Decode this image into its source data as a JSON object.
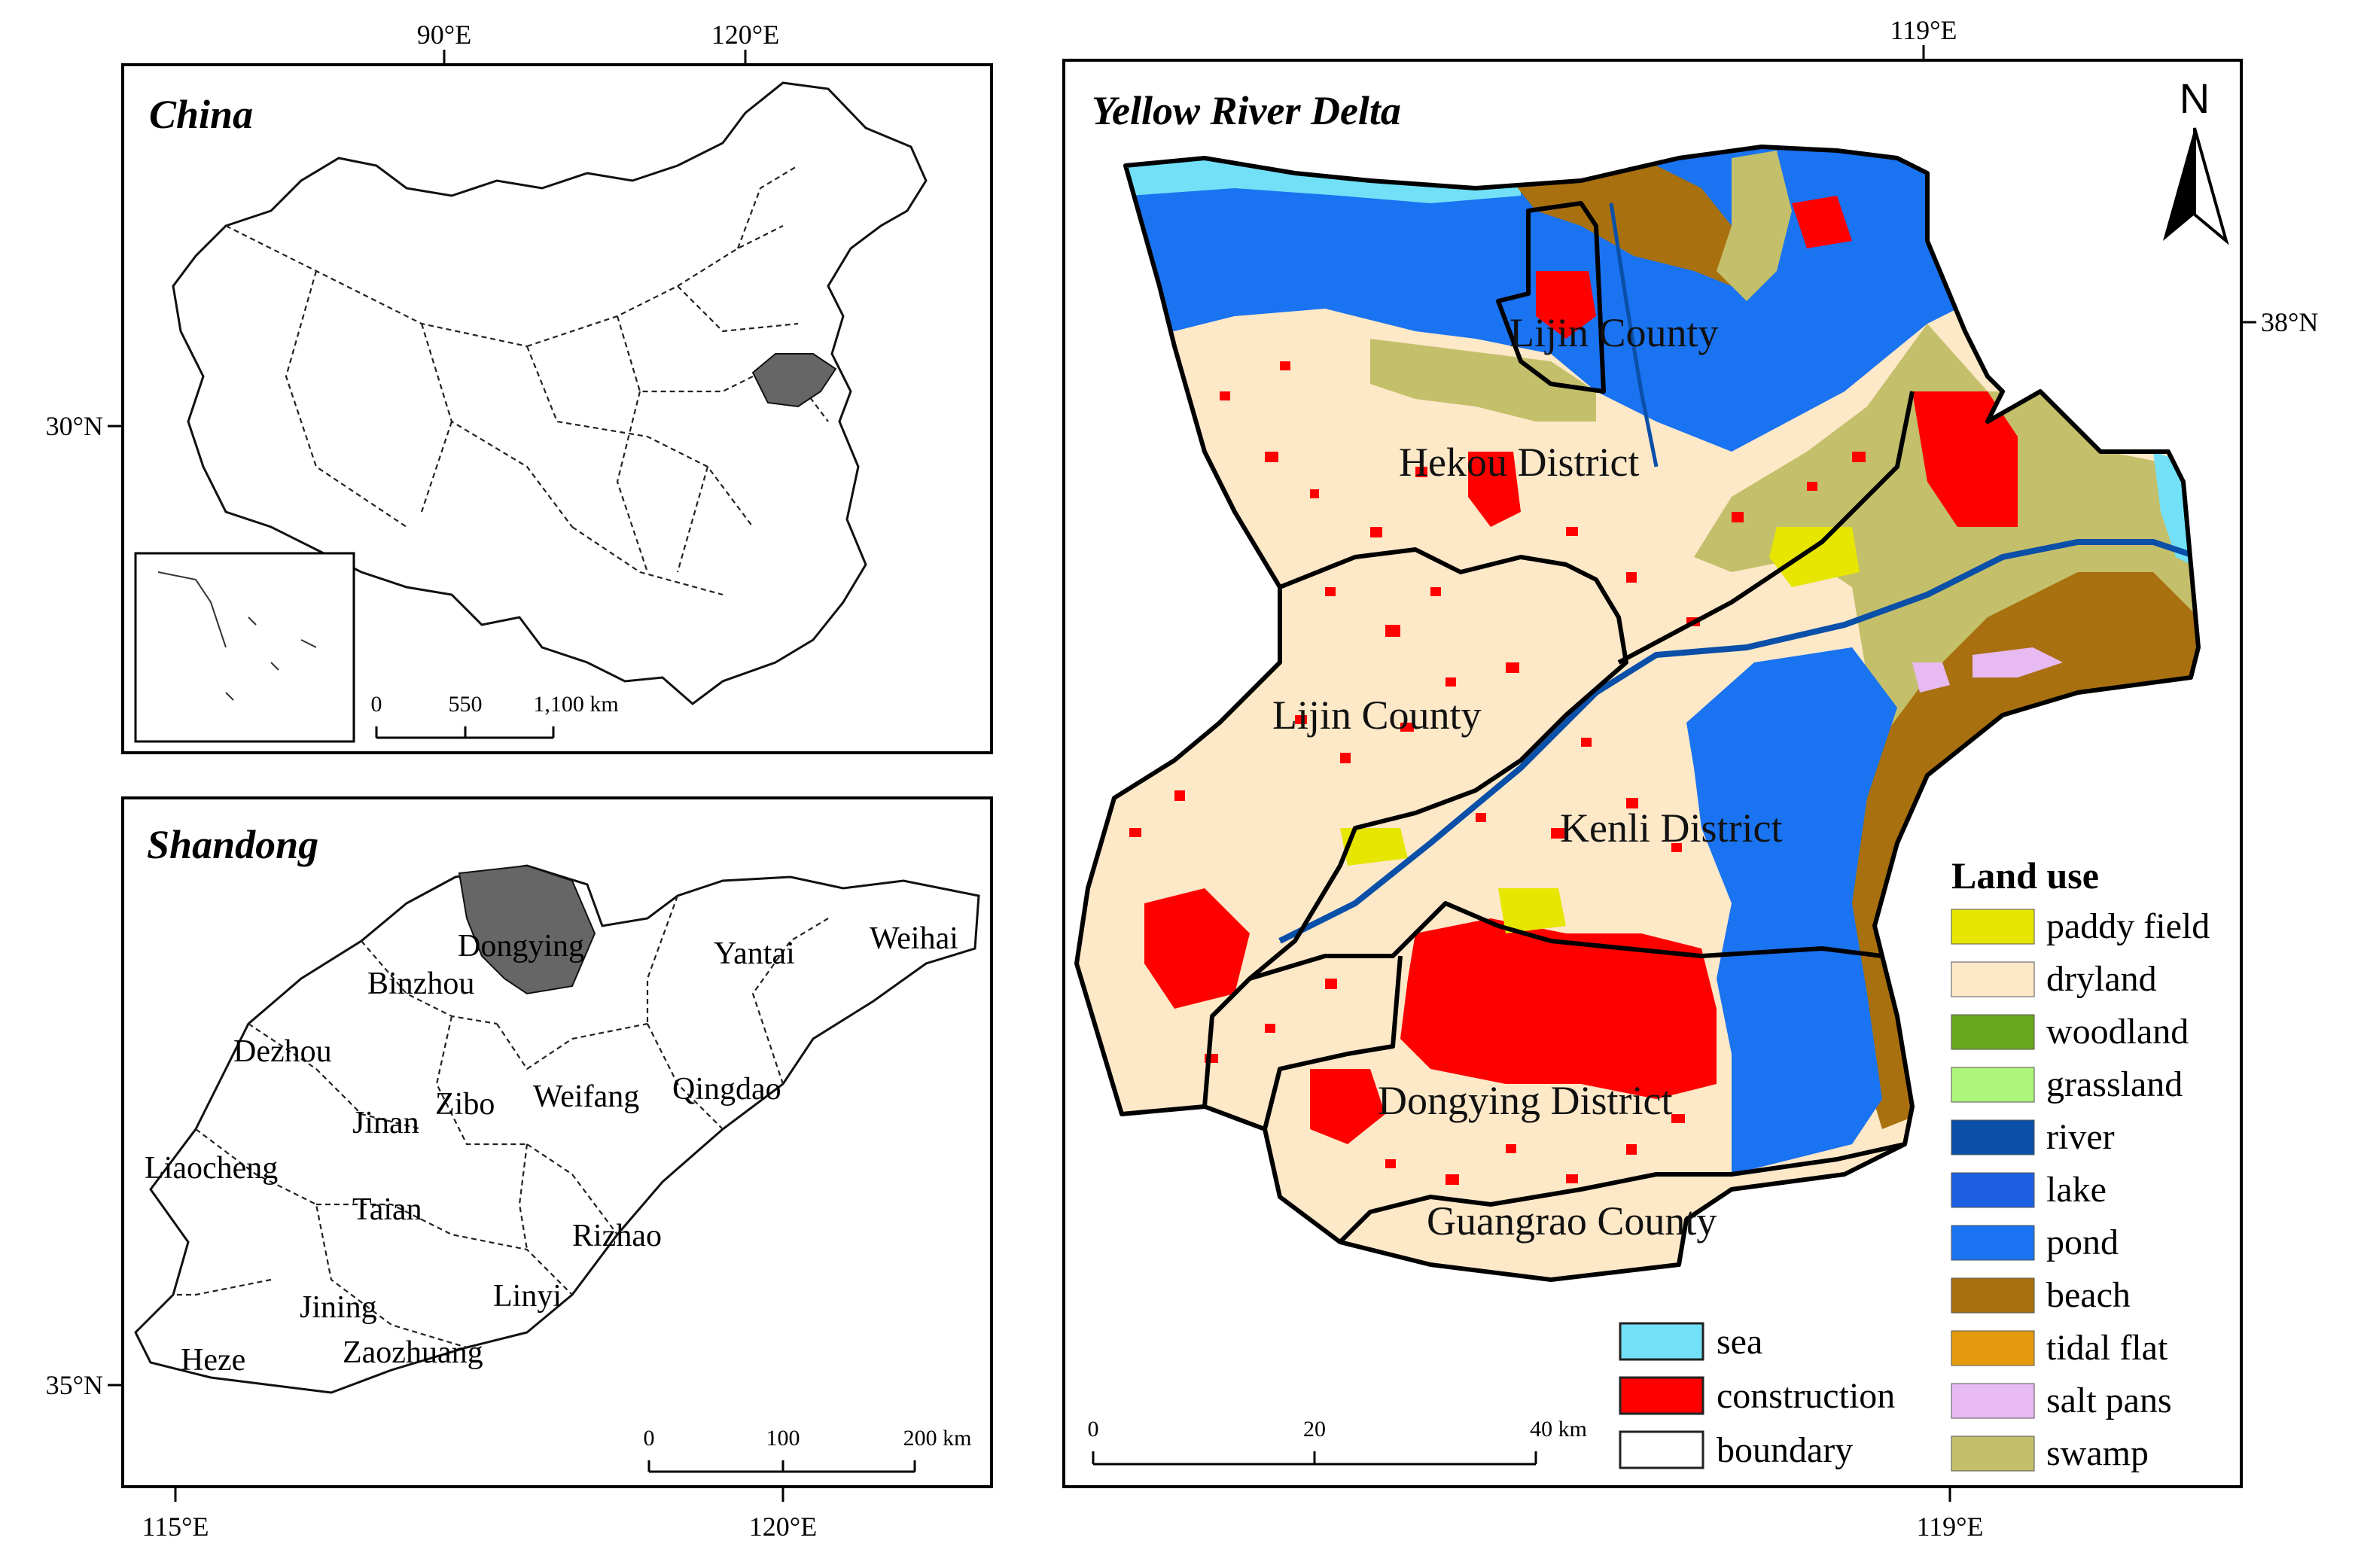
{
  "panels": {
    "china": {
      "title": "China",
      "scale": [
        "0",
        "550",
        "1,100 km"
      ]
    },
    "shandong": {
      "title": "Shandong",
      "scale": [
        "0",
        "100",
        "200 km"
      ],
      "cities": [
        "Dongying",
        "Binzhou",
        "Yantai",
        "Weihai",
        "Dezhou",
        "Jinan",
        "Zibo",
        "Weifang",
        "Qingdao",
        "Liaocheng",
        "Taian",
        "Rizhao",
        "Linyi",
        "Jining",
        "Zaozhuang",
        "Heze"
      ]
    },
    "delta": {
      "title": "Yellow River Delta",
      "scale": [
        "0",
        "20",
        "40 km"
      ],
      "north": "N",
      "districts": [
        "Lijin County",
        "Hekou District",
        "Lijin County",
        "Kenli District",
        "Dongying District",
        "Guangrao County"
      ]
    }
  },
  "coords": {
    "china_top": [
      "90°E",
      "120°E"
    ],
    "china_left": "30°N",
    "shandong_left": "35°N",
    "shandong_bottom": [
      "115°E",
      "120°E"
    ],
    "delta_top": "119°E",
    "delta_right": "38°N",
    "delta_bottom": "119°E"
  },
  "legend": {
    "title": "Land use",
    "items": [
      {
        "label": "paddy field",
        "color": "#e6e600"
      },
      {
        "label": "dryland",
        "color": "#fde8c8"
      },
      {
        "label": "woodland",
        "color": "#6aa81e"
      },
      {
        "label": "grassland",
        "color": "#aef57d"
      },
      {
        "label": "river",
        "color": "#0a4fa8"
      },
      {
        "label": "lake",
        "color": "#1c5fe0"
      },
      {
        "label": "pond",
        "color": "#1a73f0"
      },
      {
        "label": "beach",
        "color": "#a8700f"
      },
      {
        "label": "tidal flat",
        "color": "#e39a0d"
      },
      {
        "label": "salt pans",
        "color": "#e7baf2"
      },
      {
        "label": "swamp",
        "color": "#c4bf6a"
      }
    ],
    "extra": [
      {
        "label": "sea",
        "color": "#72e1f7"
      },
      {
        "label": "construction",
        "color": "#ff0000"
      },
      {
        "label": "boundary",
        "color": "#ffffff"
      }
    ]
  },
  "colors": {
    "highlight": "#666666"
  }
}
